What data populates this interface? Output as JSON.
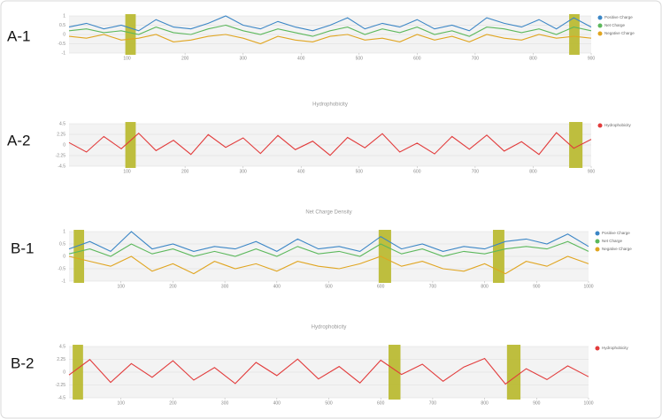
{
  "chart_data": [
    {
      "type": "line",
      "label": "A-1",
      "x": [
        0,
        30,
        60,
        90,
        120,
        150,
        180,
        210,
        240,
        270,
        300,
        330,
        360,
        390,
        420,
        450,
        480,
        510,
        540,
        570,
        600,
        630,
        660,
        690,
        720,
        750,
        780,
        810,
        840,
        870,
        900
      ],
      "xlim": [
        0,
        900
      ],
      "xticks": [
        100,
        200,
        300,
        400,
        500,
        600,
        700,
        800,
        900
      ],
      "ylim": [
        -1,
        1
      ],
      "yticks": [
        -1,
        -0.5,
        0,
        0.5,
        1
      ],
      "grid": true,
      "highlights": [
        [
          97,
          115
        ],
        [
          862,
          880
        ]
      ],
      "highlight_color": "#b8b82a",
      "series": [
        {
          "name": "Positive Charge",
          "color": "#3b86c6",
          "values": [
            0.4,
            0.6,
            0.3,
            0.5,
            0.2,
            0.8,
            0.4,
            0.3,
            0.6,
            1,
            0.5,
            0.3,
            0.7,
            0.4,
            0.2,
            0.5,
            0.9,
            0.3,
            0.6,
            0.4,
            0.8,
            0.3,
            0.5,
            0.2,
            0.9,
            0.6,
            0.4,
            0.8,
            0.3,
            0.9,
            0.4
          ]
        },
        {
          "name": "Net Charge",
          "color": "#5cb85c",
          "values": [
            0.2,
            0.3,
            0.1,
            0.2,
            0,
            0.4,
            0.1,
            0,
            0.3,
            0.5,
            0.2,
            0,
            0.3,
            0.1,
            -0.1,
            0.2,
            0.4,
            0,
            0.3,
            0.1,
            0.4,
            0,
            0.2,
            -0.1,
            0.4,
            0.3,
            0.1,
            0.3,
            0,
            0.4,
            0.2
          ]
        },
        {
          "name": "Negative Charge",
          "color": "#e0a520",
          "values": [
            -0.1,
            -0.2,
            0,
            -0.3,
            -0.2,
            0,
            -0.4,
            -0.3,
            -0.1,
            0,
            -0.2,
            -0.5,
            -0.1,
            -0.3,
            -0.4,
            -0.1,
            0,
            -0.3,
            -0.2,
            -0.4,
            0,
            -0.3,
            -0.1,
            -0.4,
            0,
            -0.2,
            -0.3,
            0,
            -0.2,
            -0.1,
            -0.2
          ]
        }
      ]
    },
    {
      "type": "line",
      "label": "A-2",
      "title": "Hydrophobicity",
      "x": [
        0,
        30,
        60,
        90,
        120,
        150,
        180,
        210,
        240,
        270,
        300,
        330,
        360,
        390,
        420,
        450,
        480,
        510,
        540,
        570,
        600,
        630,
        660,
        690,
        720,
        750,
        780,
        810,
        840,
        870,
        900
      ],
      "xlim": [
        0,
        900
      ],
      "xticks": [
        100,
        200,
        300,
        400,
        500,
        600,
        700,
        800,
        900
      ],
      "ylim": [
        -4.5,
        4.5
      ],
      "yticks": [
        -4.5,
        -2.25,
        0,
        2.25,
        4.5
      ],
      "grid": true,
      "highlights": [
        [
          97,
          115
        ],
        [
          862,
          885
        ]
      ],
      "highlight_color": "#b8b82a",
      "series": [
        {
          "name": "Hydrophobicity",
          "color": "#e23b3b",
          "values": [
            0.5,
            -1.5,
            1.8,
            -0.8,
            2.5,
            -1.2,
            1,
            -2,
            2.2,
            -0.5,
            1.5,
            -1.8,
            2,
            -1,
            0.8,
            -2.2,
            1.6,
            -0.6,
            2.4,
            -1.5,
            0.4,
            -1.9,
            1.8,
            -0.9,
            2.1,
            -1.3,
            0.7,
            -2,
            2.6,
            -0.7,
            1.2
          ]
        }
      ]
    },
    {
      "type": "line",
      "label": "B-1",
      "title": "Net Charge Density",
      "x": [
        0,
        40,
        80,
        120,
        160,
        200,
        240,
        280,
        320,
        360,
        400,
        440,
        480,
        520,
        560,
        600,
        640,
        680,
        720,
        760,
        800,
        840,
        880,
        920,
        960,
        1000
      ],
      "xlim": [
        0,
        1000
      ],
      "xticks": [
        100,
        200,
        300,
        400,
        500,
        600,
        700,
        800,
        900,
        1000
      ],
      "ylim": [
        -1,
        1
      ],
      "yticks": [
        -1,
        -0.5,
        0,
        0.5,
        1
      ],
      "grid": true,
      "highlights": [
        [
          9,
          29
        ],
        [
          596,
          620
        ],
        [
          816,
          838
        ]
      ],
      "highlight_color": "#b8b82a",
      "series": [
        {
          "name": "Positive Charge",
          "color": "#3b86c6",
          "values": [
            0.3,
            0.6,
            0.2,
            1,
            0.3,
            0.5,
            0.2,
            0.4,
            0.3,
            0.6,
            0.2,
            0.7,
            0.3,
            0.4,
            0.2,
            0.8,
            0.3,
            0.5,
            0.2,
            0.4,
            0.3,
            0.6,
            0.7,
            0.5,
            0.9,
            0.4
          ]
        },
        {
          "name": "Net Charge",
          "color": "#5cb85c",
          "values": [
            0.1,
            0.3,
            0,
            0.5,
            0.1,
            0.3,
            0,
            0.2,
            0,
            0.3,
            0,
            0.4,
            0.1,
            0.2,
            0,
            0.5,
            0.1,
            0.3,
            0,
            0.2,
            0.1,
            0.3,
            0.4,
            0.3,
            0.6,
            0.2
          ]
        },
        {
          "name": "Negative Charge",
          "color": "#e0a520",
          "values": [
            0,
            -0.2,
            -0.4,
            0,
            -0.6,
            -0.3,
            -0.7,
            -0.2,
            -0.5,
            -0.3,
            -0.6,
            -0.2,
            -0.4,
            -0.5,
            -0.3,
            0,
            -0.4,
            -0.2,
            -0.5,
            -0.6,
            -0.3,
            -0.7,
            -0.2,
            -0.4,
            0,
            -0.3
          ]
        }
      ]
    },
    {
      "type": "line",
      "label": "B-2",
      "title": "Hydrophobicity",
      "x": [
        0,
        40,
        80,
        120,
        160,
        200,
        240,
        280,
        320,
        360,
        400,
        440,
        480,
        520,
        560,
        600,
        640,
        680,
        720,
        760,
        800,
        840,
        880,
        920,
        960,
        1000
      ],
      "xlim": [
        0,
        1000
      ],
      "xticks": [
        100,
        200,
        300,
        400,
        500,
        600,
        700,
        800,
        900,
        1000
      ],
      "ylim": [
        -4.5,
        4.5
      ],
      "yticks": [
        -4.5,
        -2.25,
        0,
        2.25,
        4.5
      ],
      "grid": true,
      "highlights": [
        [
          7,
          27
        ],
        [
          615,
          638
        ],
        [
          843,
          869
        ]
      ],
      "highlight_color": "#b8b82a",
      "series": [
        {
          "name": "Hydrophobicity",
          "color": "#e23b3b",
          "values": [
            -0.5,
            2.2,
            -1.8,
            1.5,
            -0.9,
            2,
            -1.4,
            0.8,
            -2,
            1.7,
            -0.6,
            2.3,
            -1.2,
            1,
            -1.9,
            2.1,
            -0.4,
            1.4,
            -1.6,
            0.9,
            2.4,
            -2.1,
            0.6,
            -1.3,
            1.1,
            -0.8
          ]
        }
      ]
    }
  ]
}
